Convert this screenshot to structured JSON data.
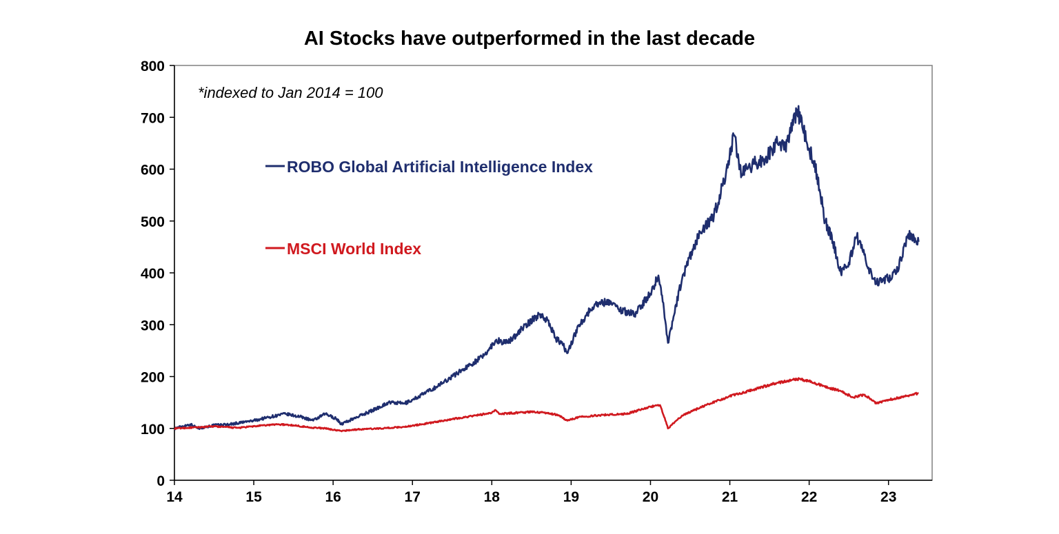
{
  "chart_data": {
    "type": "line",
    "title": "AI Stocks have outperformed in the last decade",
    "annotation": "*indexed to Jan 2014 = 100",
    "xlabel": "",
    "ylabel": "",
    "xlim": [
      14,
      23.55
    ],
    "ylim": [
      0,
      800
    ],
    "x_ticks": [
      14,
      15,
      16,
      17,
      18,
      19,
      20,
      21,
      22,
      23
    ],
    "x_tick_labels": [
      "14",
      "15",
      "16",
      "17",
      "18",
      "19",
      "20",
      "21",
      "22",
      "23"
    ],
    "y_ticks": [
      0,
      100,
      200,
      300,
      400,
      500,
      600,
      700,
      800
    ],
    "y_tick_labels": [
      "0",
      "100",
      "200",
      "300",
      "400",
      "500",
      "600",
      "700",
      "800"
    ],
    "grid": false,
    "legend_placement": "inside upper-left",
    "series": [
      {
        "name": "ROBO Global Artificial Intelligence Index",
        "color": "#1f2e6e",
        "x": [
          14.0,
          14.2,
          14.3,
          14.5,
          14.7,
          15.0,
          15.2,
          15.4,
          15.6,
          15.75,
          15.9,
          16.05,
          16.1,
          16.3,
          16.5,
          16.7,
          16.9,
          17.0,
          17.3,
          17.6,
          17.9,
          18.05,
          18.2,
          18.4,
          18.6,
          18.7,
          18.8,
          18.9,
          18.95,
          19.1,
          19.3,
          19.5,
          19.6,
          19.8,
          20.0,
          20.1,
          20.17,
          20.22,
          20.4,
          20.6,
          20.8,
          20.95,
          21.05,
          21.15,
          21.3,
          21.45,
          21.6,
          21.7,
          21.85,
          22.0,
          22.1,
          22.2,
          22.3,
          22.4,
          22.5,
          22.6,
          22.75,
          22.85,
          23.0,
          23.1,
          23.25,
          23.38
        ],
        "y": [
          100,
          108,
          100,
          106,
          108,
          115,
          122,
          128,
          122,
          115,
          128,
          118,
          108,
          122,
          135,
          150,
          148,
          155,
          180,
          210,
          240,
          270,
          265,
          295,
          320,
          310,
          275,
          260,
          245,
          300,
          340,
          345,
          330,
          320,
          360,
          395,
          330,
          265,
          390,
          470,
          510,
          590,
          665,
          590,
          610,
          620,
          650,
          640,
          715,
          640,
          590,
          500,
          460,
          400,
          420,
          470,
          410,
          380,
          390,
          400,
          475,
          460
        ]
      },
      {
        "name": "MSCI World Index",
        "color": "#d0191f",
        "x": [
          14.0,
          14.3,
          14.5,
          14.8,
          15.0,
          15.3,
          15.5,
          15.7,
          15.9,
          16.1,
          16.3,
          16.6,
          16.9,
          17.2,
          17.5,
          17.8,
          18.0,
          18.05,
          18.1,
          18.3,
          18.5,
          18.7,
          18.85,
          18.95,
          19.1,
          19.4,
          19.7,
          20.0,
          20.12,
          20.18,
          20.22,
          20.4,
          20.7,
          21.0,
          21.3,
          21.6,
          21.85,
          22.0,
          22.2,
          22.4,
          22.55,
          22.7,
          22.85,
          23.0,
          23.2,
          23.38
        ],
        "y": [
          100,
          102,
          104,
          101,
          104,
          108,
          106,
          102,
          100,
          95,
          98,
          100,
          103,
          110,
          118,
          125,
          130,
          135,
          128,
          130,
          132,
          130,
          125,
          115,
          122,
          126,
          128,
          142,
          145,
          120,
          100,
          125,
          145,
          162,
          175,
          188,
          195,
          192,
          180,
          172,
          160,
          165,
          148,
          155,
          162,
          168
        ]
      }
    ]
  }
}
